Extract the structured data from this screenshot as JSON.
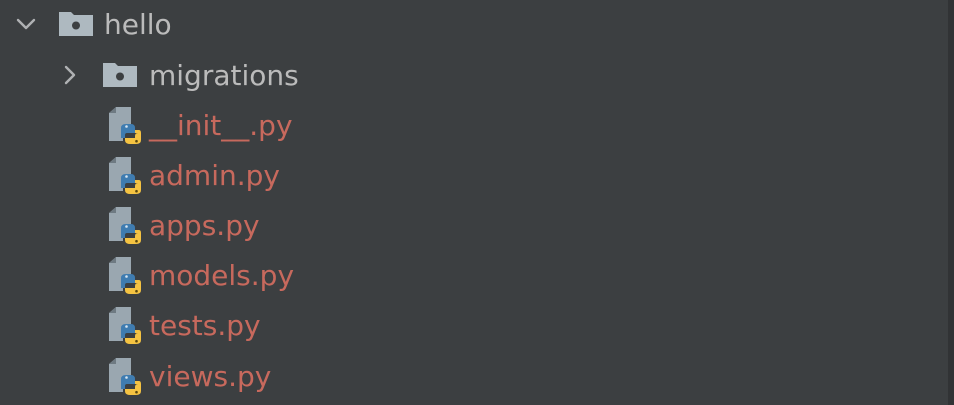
{
  "colors": {
    "background": "#3c3f41",
    "folder_text": "#bbbbbb",
    "file_text": "#c7695d",
    "folder_icon": "#aeb9c0",
    "chevron": "#afb1b3"
  },
  "tree": {
    "root": {
      "label": "hello",
      "expanded": true,
      "icon": "folder-icon"
    },
    "children": [
      {
        "label": "migrations",
        "kind": "folder",
        "expanded": false,
        "icon": "folder-icon"
      },
      {
        "label": "__init__.py",
        "kind": "file",
        "icon": "python-file-icon"
      },
      {
        "label": "admin.py",
        "kind": "file",
        "icon": "python-file-icon"
      },
      {
        "label": "apps.py",
        "kind": "file",
        "icon": "python-file-icon"
      },
      {
        "label": "models.py",
        "kind": "file",
        "icon": "python-file-icon"
      },
      {
        "label": "tests.py",
        "kind": "file",
        "icon": "python-file-icon"
      },
      {
        "label": "views.py",
        "kind": "file",
        "icon": "python-file-icon"
      }
    ]
  }
}
